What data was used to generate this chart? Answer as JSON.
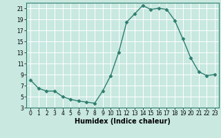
{
  "x": [
    0,
    1,
    2,
    3,
    4,
    5,
    6,
    7,
    8,
    9,
    10,
    11,
    12,
    13,
    14,
    15,
    16,
    17,
    18,
    19,
    20,
    21,
    22,
    23
  ],
  "y": [
    8,
    6.5,
    6,
    6,
    5,
    4.5,
    4.2,
    4,
    3.8,
    6,
    8.8,
    13,
    18.5,
    20,
    21.5,
    20.8,
    21,
    20.8,
    18.8,
    15.5,
    12,
    9.5,
    8.8,
    9
  ],
  "line_color": "#2e7d6e",
  "marker": "D",
  "marker_size": 2.5,
  "bg_color": "#c8e8e0",
  "grid_color": "#ffffff",
  "xlabel": "Humidex (Indice chaleur)",
  "xlim": [
    -0.5,
    23.5
  ],
  "ylim": [
    3,
    22
  ],
  "yticks": [
    3,
    5,
    7,
    9,
    11,
    13,
    15,
    17,
    19,
    21
  ],
  "xticks": [
    0,
    1,
    2,
    3,
    4,
    5,
    6,
    7,
    8,
    9,
    10,
    11,
    12,
    13,
    14,
    15,
    16,
    17,
    18,
    19,
    20,
    21,
    22,
    23
  ],
  "tick_fontsize": 5.5,
  "xlabel_fontsize": 7,
  "line_width": 1.0
}
